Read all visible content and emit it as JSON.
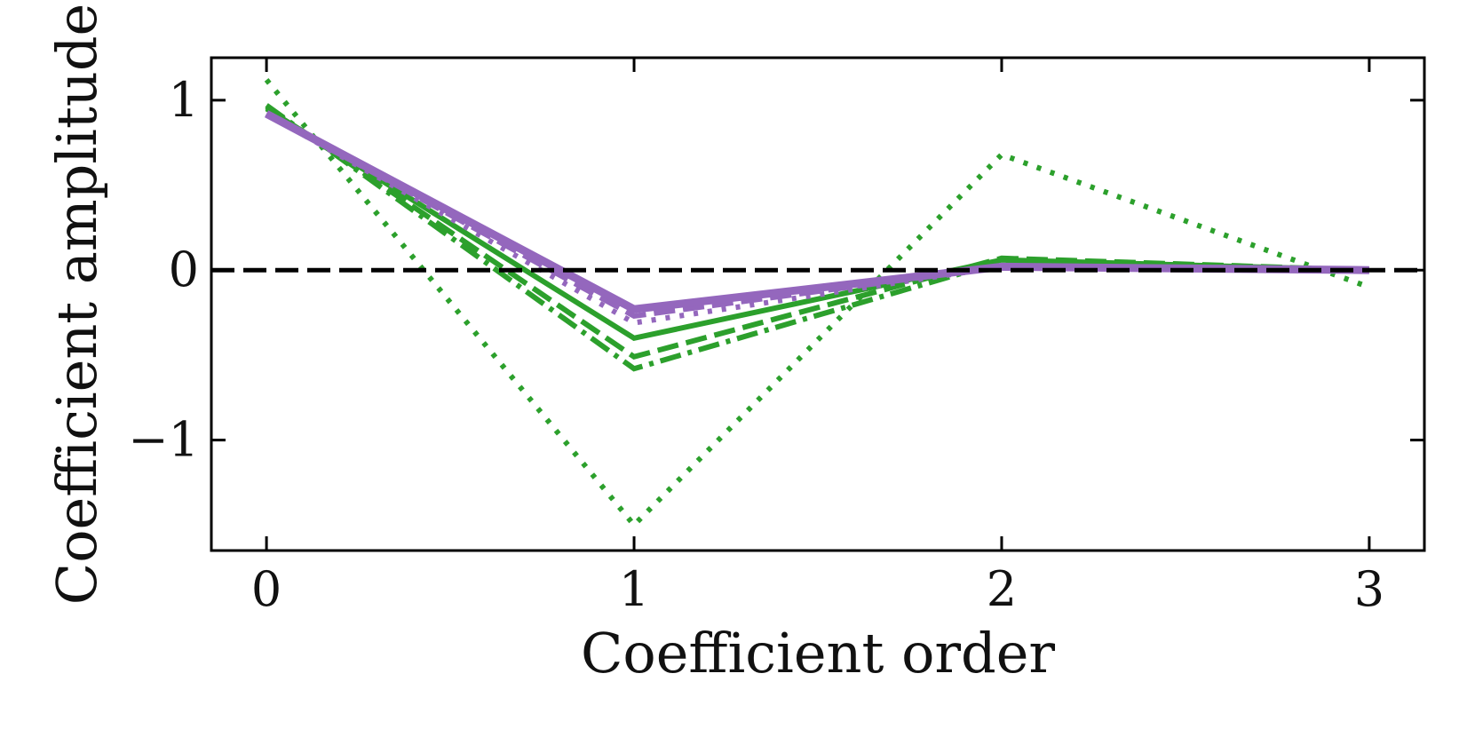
{
  "chart_data": {
    "type": "line",
    "title": "",
    "xlabel": "Coefficient order",
    "ylabel": "Coefficient amplitude",
    "x": [
      0,
      1,
      2,
      3
    ],
    "xlim": [
      -0.15,
      3.15
    ],
    "ylim": [
      -1.65,
      1.25
    ],
    "xticks": [
      0,
      1,
      2,
      3
    ],
    "xtick_labels": [
      "0",
      "1",
      "2",
      "3"
    ],
    "yticks": [
      -1,
      0,
      1
    ],
    "ytick_labels": [
      "−1",
      "0",
      "1"
    ],
    "grid": false,
    "legend": "none",
    "reference_line": {
      "y": 0,
      "color": "#000000",
      "style": "dashed"
    },
    "series": [
      {
        "color": "#2ca02c",
        "style": "dotted",
        "values": [
          1.12,
          -1.5,
          0.68,
          -0.1
        ]
      },
      {
        "color": "#2ca02c",
        "style": "dashdot",
        "values": [
          0.97,
          -0.58,
          0.05,
          0.0
        ]
      },
      {
        "color": "#2ca02c",
        "style": "dashed",
        "values": [
          0.96,
          -0.51,
          0.07,
          0.0
        ]
      },
      {
        "color": "#2ca02c",
        "style": "solid",
        "values": [
          0.95,
          -0.4,
          0.06,
          0.0
        ]
      },
      {
        "color": "#9467bd",
        "style": "dotted",
        "values": [
          0.92,
          -0.31,
          0.02,
          0.0
        ]
      },
      {
        "color": "#9467bd",
        "style": "dashed",
        "values": [
          0.92,
          -0.27,
          0.02,
          0.0
        ]
      },
      {
        "color": "#9467bd",
        "style": "solid",
        "values": [
          0.92,
          -0.23,
          0.02,
          0.0
        ]
      }
    ]
  }
}
